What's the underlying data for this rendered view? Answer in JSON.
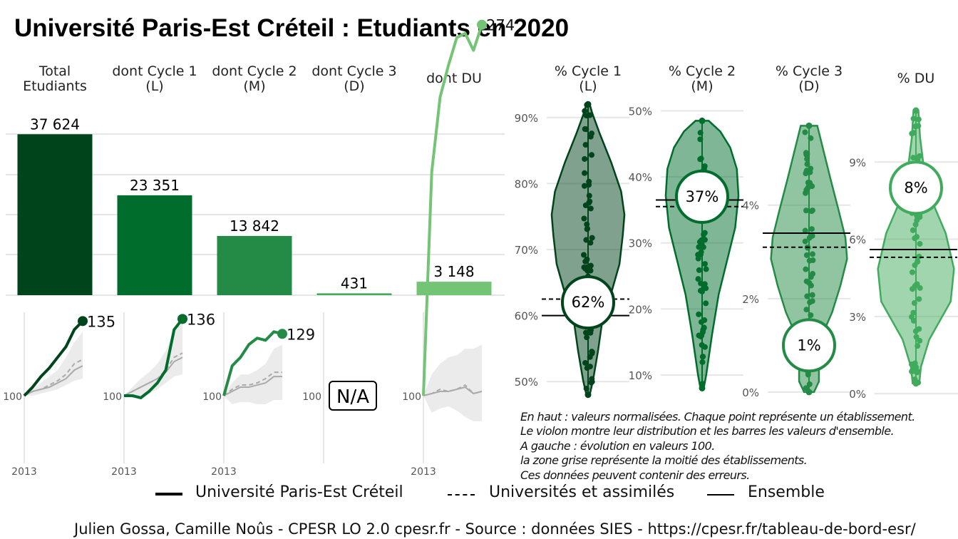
{
  "title": "Université Paris-Est Créteil  :  Etudiants en 2020",
  "chart_data": [
    {
      "type": "bar",
      "categories": [
        "Total\nEtudiants",
        "dont Cycle 1\n(L)",
        "dont Cycle 2\n(M)",
        "dont Cycle 3\n(D)",
        "dont DU"
      ],
      "values": [
        37624,
        23351,
        13842,
        431,
        3148
      ],
      "value_labels": [
        "37 624",
        "23 351",
        "13 842",
        "431",
        "3 148"
      ],
      "colors": [
        "#00441b",
        "#006d2c",
        "#238b45",
        "#41ab5d",
        "#74c476"
      ],
      "ylim": [
        0,
        41000
      ],
      "grid": true
    },
    {
      "type": "line",
      "note": "évolution en valeurs 100",
      "panels": [
        {
          "x_label": "2013",
          "start_label": "100",
          "end_label": "135",
          "color": "#00441b",
          "x": [
            2013,
            2014,
            2015,
            2016,
            2017,
            2018,
            2019,
            2020
          ],
          "univ": [
            100,
            104,
            109,
            113,
            118,
            123,
            131,
            135
          ],
          "univ_assim": [
            100,
            102,
            103,
            105,
            107,
            110,
            115,
            117
          ],
          "ensemble": [
            100,
            102,
            103,
            104,
            106,
            108,
            112,
            114
          ],
          "band_low": [
            100,
            100,
            101,
            102,
            103,
            105,
            107,
            108
          ],
          "band_high": [
            100,
            103,
            106,
            109,
            112,
            118,
            125,
            130
          ]
        },
        {
          "x_label": "2013",
          "start_label": "100",
          "end_label": "136",
          "color": "#006d2c",
          "x": [
            2013,
            2014,
            2015,
            2016,
            2017,
            2018,
            2019,
            2020
          ],
          "univ": [
            100,
            100,
            99,
            102,
            106,
            112,
            131,
            136
          ],
          "univ_assim": [
            100,
            102,
            104,
            106,
            108,
            112,
            118,
            120
          ],
          "ensemble": [
            100,
            102,
            104,
            106,
            108,
            111,
            116,
            118
          ],
          "band_low": [
            100,
            99,
            100,
            101,
            103,
            106,
            109,
            110
          ],
          "band_high": [
            100,
            104,
            108,
            111,
            115,
            121,
            130,
            134
          ]
        },
        {
          "x_label": "2013",
          "start_label": "100",
          "end_label": "129",
          "color": "#238b45",
          "x": [
            2013,
            2014,
            2015,
            2016,
            2017,
            2018,
            2019,
            2020
          ],
          "univ": [
            100,
            114,
            118,
            124,
            127,
            126,
            130,
            129
          ],
          "univ_assim": [
            100,
            103,
            105,
            105,
            106,
            108,
            111,
            111
          ],
          "ensemble": [
            100,
            102,
            104,
            104,
            105,
            106,
            109,
            109
          ],
          "band_low": [
            100,
            96,
            97,
            97,
            96,
            96,
            98,
            98
          ],
          "band_high": [
            100,
            106,
            110,
            110,
            112,
            115,
            122,
            124
          ]
        },
        {
          "x_label": "",
          "start_label": "100",
          "end_label": "",
          "na": "N/A",
          "color": "#41ab5d"
        },
        {
          "x_label": "2013",
          "start_label": "100",
          "end_label": "274",
          "color": "#74c476",
          "x": [
            2013,
            2014,
            2015,
            2016,
            2017,
            2018,
            2019,
            2020
          ],
          "univ": [
            100,
            205,
            240,
            255,
            268,
            270,
            262,
            274
          ],
          "univ_assim": [
            100,
            101,
            103,
            102,
            103,
            105,
            101,
            102
          ],
          "ensemble": [
            100,
            101,
            102,
            102,
            103,
            104,
            101,
            102
          ],
          "band_low": [
            100,
            92,
            94,
            95,
            93,
            90,
            88,
            88
          ],
          "band_high": [
            100,
            110,
            115,
            118,
            119,
            122,
            122,
            124
          ]
        }
      ]
    },
    {
      "type": "violin",
      "panels": [
        {
          "header": "% Cycle 1\n(L)",
          "ticks": [
            "50%",
            "60%",
            "70%",
            "80%",
            "90%"
          ],
          "tick_values": [
            50,
            60,
            70,
            80,
            90
          ],
          "ylim": [
            47,
            93
          ],
          "value": 62,
          "value_label": "62%",
          "ensemble": 60,
          "univ_assim": 62.5,
          "fill": "#00441b",
          "points_min": 48,
          "points_max": 92
        },
        {
          "header": "% Cycle 2\n(M)",
          "ticks": [
            "10%",
            "20%",
            "30%",
            "40%",
            "50%"
          ],
          "tick_values": [
            10,
            20,
            30,
            40,
            50
          ],
          "ylim": [
            6,
            52
          ],
          "value": 37,
          "value_label": "37%",
          "ensemble": 36.5,
          "univ_assim": 35.5,
          "fill": "#006d2c",
          "points_min": 8,
          "points_max": 48.5
        },
        {
          "header": "% Cycle 3\n(D)",
          "ticks": [
            "0%",
            "2%",
            "4%"
          ],
          "tick_values": [
            0,
            2,
            4
          ],
          "ylim": [
            -0.2,
            6.3
          ],
          "value": 1,
          "value_label": "1%",
          "ensemble": 3.4,
          "univ_assim": 3.1,
          "fill": "#238b45",
          "points_min": 0,
          "points_max": 5.7
        },
        {
          "header": "% DU",
          "ticks": [
            "0%",
            "3%",
            "6%",
            "9%"
          ],
          "tick_values": [
            0,
            3,
            6,
            9
          ],
          "ylim": [
            -0.3,
            11.5
          ],
          "value": 8,
          "value_label": "8%",
          "ensemble": 5.6,
          "univ_assim": 5.3,
          "fill": "#41ab5d",
          "points_min": 0.4,
          "points_max": 11
        }
      ]
    }
  ],
  "note": [
    "En haut : valeurs normalisées. Chaque point représente un établissement.",
    "Le violon montre leur distribution et les barres les valeurs d'ensemble.",
    "A gauche : évolution en valeurs 100.",
    "la zone grise représente la moitié des établissements.",
    "Ces données peuvent contenir des erreurs."
  ],
  "legend": {
    "univ": "Université Paris-Est Créteil",
    "assim": "Universités et assimilés",
    "ensemble": "Ensemble"
  },
  "caption": "Julien Gossa, Camille Noûs - CPESR LO 2.0 cpesr.fr - Source : données SIES - https://cpesr.fr/tableau-de-bord-esr/"
}
